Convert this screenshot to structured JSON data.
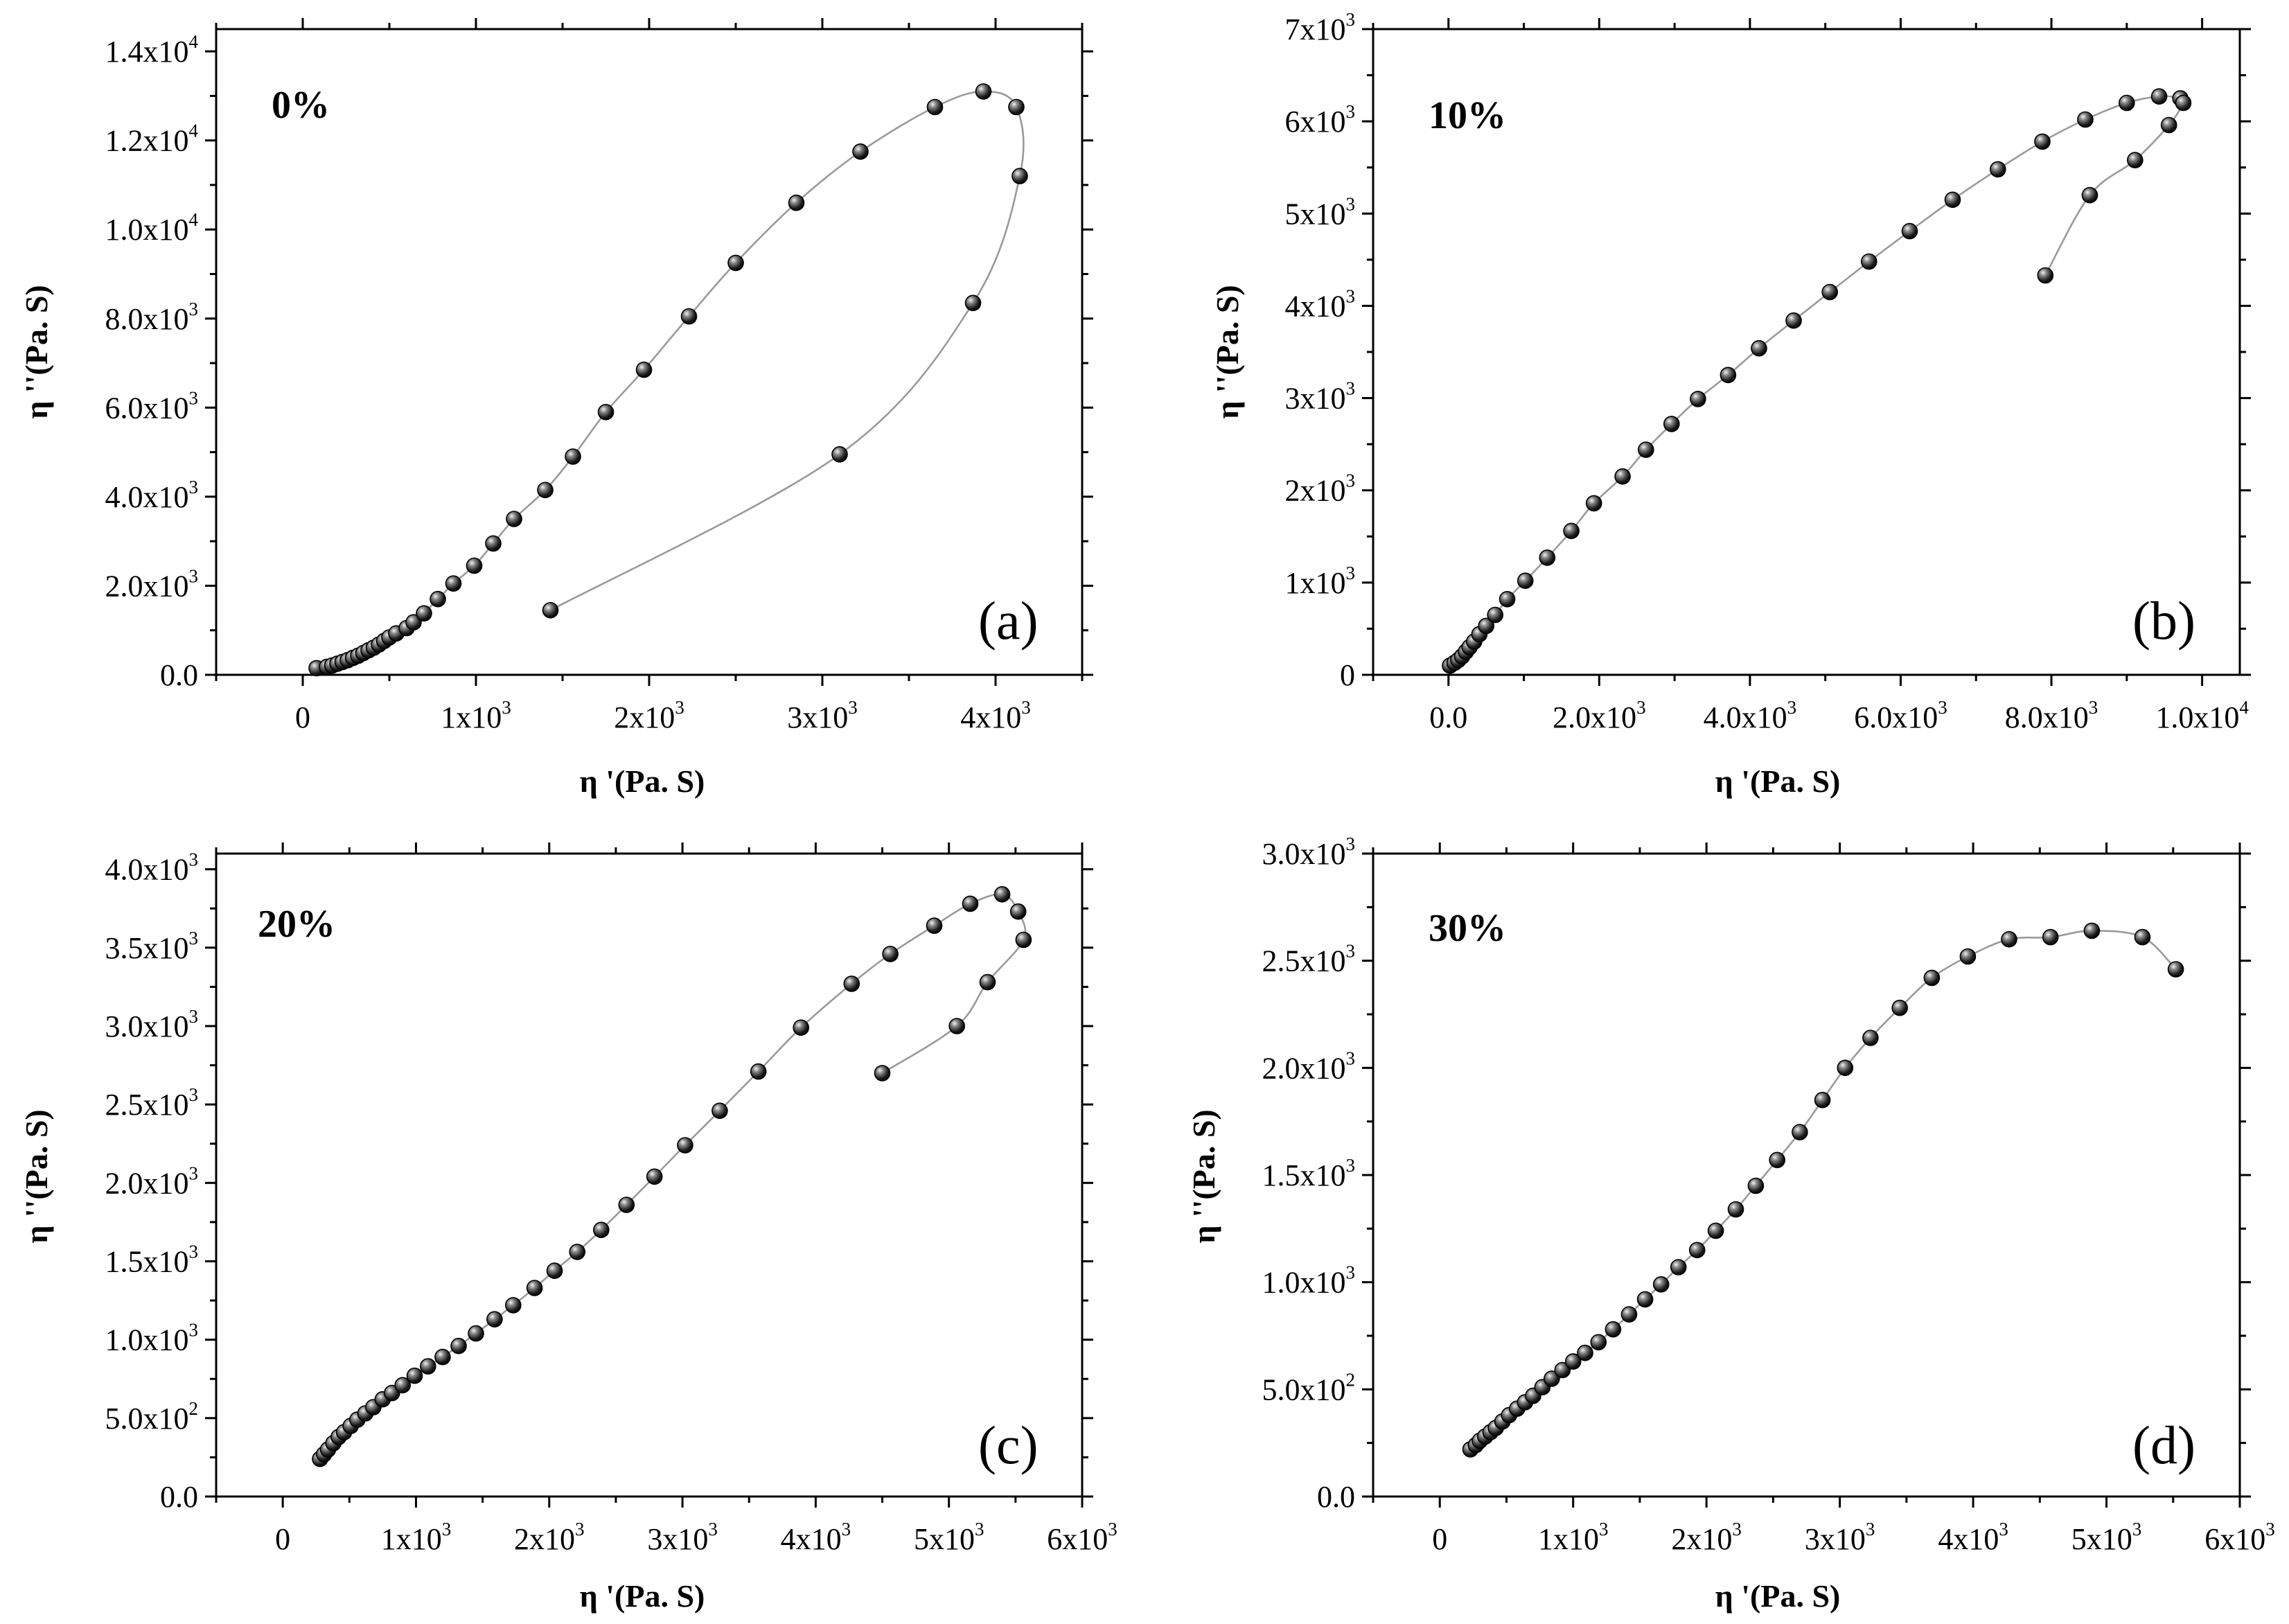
{
  "chart_data": [
    {
      "type": "scatter",
      "panel_letter": "(a)",
      "label": "0%",
      "xlabel": "η '(Pa. S)",
      "ylabel": "η ''(Pa. S)",
      "xlim": [
        -500,
        4500
      ],
      "ylim": [
        0,
        14500
      ],
      "grid": false,
      "x_ticks": [
        {
          "value": 0,
          "base": "0",
          "exp": ""
        },
        {
          "value": 1000,
          "base": "1x10",
          "exp": "3"
        },
        {
          "value": 2000,
          "base": "2x10",
          "exp": "3"
        },
        {
          "value": 3000,
          "base": "3x10",
          "exp": "3"
        },
        {
          "value": 4000,
          "base": "4x10",
          "exp": "3"
        }
      ],
      "y_ticks": [
        {
          "value": 0,
          "base": "0.0",
          "exp": ""
        },
        {
          "value": 2000,
          "base": "2.0x10",
          "exp": "3"
        },
        {
          "value": 4000,
          "base": "4.0x10",
          "exp": "3"
        },
        {
          "value": 6000,
          "base": "6.0x10",
          "exp": "3"
        },
        {
          "value": 8000,
          "base": "8.0x10",
          "exp": "3"
        },
        {
          "value": 10000,
          "base": "1.0x10",
          "exp": "4"
        },
        {
          "value": 12000,
          "base": "1.2x10",
          "exp": "4"
        },
        {
          "value": 14000,
          "base": "1.4x10",
          "exp": "4"
        }
      ],
      "points": [
        [
          80,
          150
        ],
        [
          140,
          180
        ],
        [
          170,
          210
        ],
        [
          200,
          250
        ],
        [
          230,
          290
        ],
        [
          260,
          330
        ],
        [
          290,
          380
        ],
        [
          320,
          430
        ],
        [
          350,
          490
        ],
        [
          380,
          550
        ],
        [
          410,
          610
        ],
        [
          440,
          680
        ],
        [
          470,
          760
        ],
        [
          500,
          840
        ],
        [
          540,
          930
        ],
        [
          600,
          1050
        ],
        [
          640,
          1180
        ],
        [
          700,
          1380
        ],
        [
          780,
          1700
        ],
        [
          870,
          2050
        ],
        [
          990,
          2450
        ],
        [
          1100,
          2950
        ],
        [
          1220,
          3500
        ],
        [
          1400,
          4150
        ],
        [
          1560,
          4900
        ],
        [
          1750,
          5900
        ],
        [
          1970,
          6850
        ],
        [
          2230,
          8050
        ],
        [
          2500,
          9250
        ],
        [
          2850,
          10600
        ],
        [
          3220,
          11750
        ],
        [
          3650,
          12750
        ],
        [
          3930,
          13100
        ],
        [
          4120,
          12750
        ],
        [
          4140,
          11200
        ],
        [
          3870,
          8350
        ],
        [
          3100,
          4950
        ],
        [
          1430,
          1450
        ]
      ]
    },
    {
      "type": "scatter",
      "panel_letter": "(b)",
      "label": "10%",
      "xlabel": "η '(Pa. S)",
      "ylabel": "η ''(Pa. S)",
      "xlim": [
        -1000,
        10500
      ],
      "ylim": [
        0,
        7000
      ],
      "grid": false,
      "x_ticks": [
        {
          "value": 0,
          "base": "0.0",
          "exp": ""
        },
        {
          "value": 2000,
          "base": "2.0x10",
          "exp": "3"
        },
        {
          "value": 4000,
          "base": "4.0x10",
          "exp": "3"
        },
        {
          "value": 6000,
          "base": "6.0x10",
          "exp": "3"
        },
        {
          "value": 8000,
          "base": "8.0x10",
          "exp": "3"
        },
        {
          "value": 10000,
          "base": "1.0x10",
          "exp": "4"
        }
      ],
      "y_ticks": [
        {
          "value": 0,
          "base": "0",
          "exp": ""
        },
        {
          "value": 1000,
          "base": "1x10",
          "exp": "3"
        },
        {
          "value": 2000,
          "base": "2x10",
          "exp": "3"
        },
        {
          "value": 3000,
          "base": "3x10",
          "exp": "3"
        },
        {
          "value": 4000,
          "base": "4x10",
          "exp": "3"
        },
        {
          "value": 5000,
          "base": "5x10",
          "exp": "3"
        },
        {
          "value": 6000,
          "base": "6x10",
          "exp": "3"
        },
        {
          "value": 7000,
          "base": "7x10",
          "exp": "3"
        }
      ],
      "points": [
        [
          20,
          100
        ],
        [
          80,
          130
        ],
        [
          130,
          160
        ],
        [
          180,
          200
        ],
        [
          230,
          250
        ],
        [
          280,
          300
        ],
        [
          340,
          360
        ],
        [
          410,
          440
        ],
        [
          500,
          530
        ],
        [
          620,
          650
        ],
        [
          780,
          820
        ],
        [
          1020,
          1020
        ],
        [
          1310,
          1270
        ],
        [
          1630,
          1560
        ],
        [
          1930,
          1860
        ],
        [
          2310,
          2150
        ],
        [
          2620,
          2440
        ],
        [
          2960,
          2720
        ],
        [
          3310,
          2990
        ],
        [
          3710,
          3250
        ],
        [
          4120,
          3540
        ],
        [
          4580,
          3840
        ],
        [
          5060,
          4150
        ],
        [
          5580,
          4480
        ],
        [
          6120,
          4810
        ],
        [
          6690,
          5150
        ],
        [
          7290,
          5480
        ],
        [
          7880,
          5780
        ],
        [
          8450,
          6020
        ],
        [
          9000,
          6200
        ],
        [
          9430,
          6270
        ],
        [
          9710,
          6250
        ],
        [
          9750,
          6200
        ],
        [
          9560,
          5960
        ],
        [
          9110,
          5580
        ],
        [
          8510,
          5200
        ],
        [
          7920,
          4330
        ]
      ]
    },
    {
      "type": "scatter",
      "panel_letter": "(c)",
      "label": "20%",
      "xlabel": "η '(Pa. S)",
      "ylabel": "η ''(Pa. S)",
      "xlim": [
        -500,
        6000
      ],
      "ylim": [
        0,
        4100
      ],
      "grid": false,
      "x_ticks": [
        {
          "value": 0,
          "base": "0",
          "exp": ""
        },
        {
          "value": 1000,
          "base": "1x10",
          "exp": "3"
        },
        {
          "value": 2000,
          "base": "2x10",
          "exp": "3"
        },
        {
          "value": 3000,
          "base": "3x10",
          "exp": "3"
        },
        {
          "value": 4000,
          "base": "4x10",
          "exp": "3"
        },
        {
          "value": 5000,
          "base": "5x10",
          "exp": "3"
        },
        {
          "value": 6000,
          "base": "6x10",
          "exp": "3"
        }
      ],
      "y_ticks": [
        {
          "value": 0,
          "base": "0.0",
          "exp": ""
        },
        {
          "value": 500,
          "base": "5.0x10",
          "exp": "2"
        },
        {
          "value": 1000,
          "base": "1.0x10",
          "exp": "3"
        },
        {
          "value": 1500,
          "base": "1.5x10",
          "exp": "3"
        },
        {
          "value": 2000,
          "base": "2.0x10",
          "exp": "3"
        },
        {
          "value": 2500,
          "base": "2.5x10",
          "exp": "3"
        },
        {
          "value": 3000,
          "base": "3.0x10",
          "exp": "3"
        },
        {
          "value": 3500,
          "base": "3.5x10",
          "exp": "3"
        },
        {
          "value": 4000,
          "base": "4.0x10",
          "exp": "3"
        }
      ],
      "points": [
        [
          280,
          240
        ],
        [
          310,
          270
        ],
        [
          340,
          300
        ],
        [
          380,
          340
        ],
        [
          420,
          380
        ],
        [
          460,
          410
        ],
        [
          510,
          450
        ],
        [
          560,
          490
        ],
        [
          620,
          530
        ],
        [
          680,
          570
        ],
        [
          750,
          620
        ],
        [
          820,
          660
        ],
        [
          900,
          710
        ],
        [
          990,
          770
        ],
        [
          1090,
          830
        ],
        [
          1200,
          890
        ],
        [
          1320,
          960
        ],
        [
          1450,
          1040
        ],
        [
          1590,
          1130
        ],
        [
          1730,
          1220
        ],
        [
          1890,
          1330
        ],
        [
          2040,
          1440
        ],
        [
          2210,
          1560
        ],
        [
          2390,
          1700
        ],
        [
          2580,
          1860
        ],
        [
          2790,
          2040
        ],
        [
          3020,
          2240
        ],
        [
          3280,
          2460
        ],
        [
          3570,
          2710
        ],
        [
          3890,
          2990
        ],
        [
          4270,
          3270
        ],
        [
          4560,
          3460
        ],
        [
          4890,
          3640
        ],
        [
          5160,
          3780
        ],
        [
          5400,
          3840
        ],
        [
          5520,
          3730
        ],
        [
          5560,
          3550
        ],
        [
          5290,
          3280
        ],
        [
          5060,
          3000
        ],
        [
          4500,
          2700
        ]
      ]
    },
    {
      "type": "scatter",
      "panel_letter": "(d)",
      "label": "30%",
      "xlabel": "η '(Pa. S)",
      "ylabel": "η ''(Pa. S)",
      "xlim": [
        -500,
        6000
      ],
      "ylim": [
        0,
        3000
      ],
      "grid": false,
      "x_ticks": [
        {
          "value": 0,
          "base": "0",
          "exp": ""
        },
        {
          "value": 1000,
          "base": "1x10",
          "exp": "3"
        },
        {
          "value": 2000,
          "base": "2x10",
          "exp": "3"
        },
        {
          "value": 3000,
          "base": "3x10",
          "exp": "3"
        },
        {
          "value": 4000,
          "base": "4x10",
          "exp": "3"
        },
        {
          "value": 5000,
          "base": "5x10",
          "exp": "3"
        },
        {
          "value": 6000,
          "base": "6x10",
          "exp": "3"
        }
      ],
      "y_ticks": [
        {
          "value": 0,
          "base": "0.0",
          "exp": ""
        },
        {
          "value": 500,
          "base": "5.0x10",
          "exp": "2"
        },
        {
          "value": 1000,
          "base": "1.0x10",
          "exp": "3"
        },
        {
          "value": 1500,
          "base": "1.5x10",
          "exp": "3"
        },
        {
          "value": 2000,
          "base": "2.0x10",
          "exp": "3"
        },
        {
          "value": 2500,
          "base": "2.5x10",
          "exp": "3"
        },
        {
          "value": 3000,
          "base": "3.0x10",
          "exp": "3"
        }
      ],
      "points": [
        [
          230,
          220
        ],
        [
          270,
          240
        ],
        [
          300,
          260
        ],
        [
          340,
          280
        ],
        [
          380,
          300
        ],
        [
          420,
          320
        ],
        [
          470,
          350
        ],
        [
          520,
          380
        ],
        [
          580,
          410
        ],
        [
          640,
          440
        ],
        [
          700,
          470
        ],
        [
          770,
          510
        ],
        [
          840,
          550
        ],
        [
          920,
          590
        ],
        [
          1000,
          630
        ],
        [
          1090,
          670
        ],
        [
          1190,
          720
        ],
        [
          1300,
          780
        ],
        [
          1420,
          850
        ],
        [
          1540,
          920
        ],
        [
          1660,
          990
        ],
        [
          1790,
          1070
        ],
        [
          1930,
          1150
        ],
        [
          2070,
          1240
        ],
        [
          2220,
          1340
        ],
        [
          2370,
          1450
        ],
        [
          2530,
          1570
        ],
        [
          2700,
          1700
        ],
        [
          2870,
          1850
        ],
        [
          3040,
          2000
        ],
        [
          3230,
          2140
        ],
        [
          3450,
          2280
        ],
        [
          3690,
          2420
        ],
        [
          3960,
          2520
        ],
        [
          4270,
          2600
        ],
        [
          4580,
          2610
        ],
        [
          4890,
          2640
        ],
        [
          5270,
          2610
        ],
        [
          5520,
          2460
        ]
      ]
    }
  ]
}
